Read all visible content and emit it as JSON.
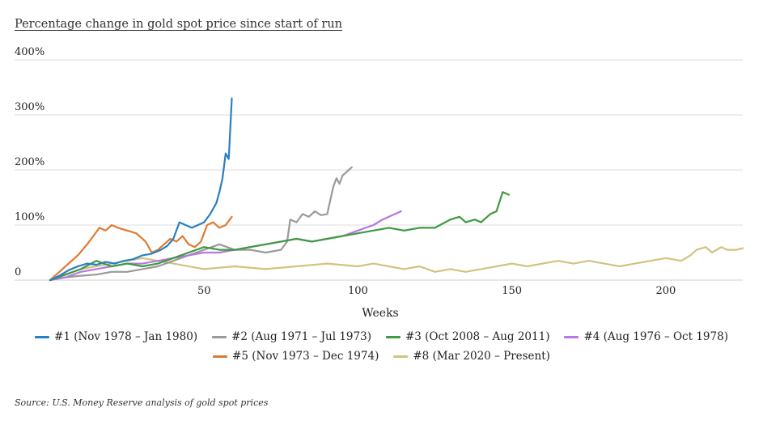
{
  "title": "Percentage change in gold spot price since start of run",
  "source": "Source: U.S. Money Reserve analysis of gold spot prices",
  "chart_data": {
    "type": "line",
    "title": "Percentage change in gold spot price since start of run",
    "xlabel": "Weeks",
    "ylabel": "",
    "xlim": [
      0,
      225
    ],
    "ylim": [
      0,
      400
    ],
    "xticks": [
      50,
      100,
      150,
      200
    ],
    "yticks": [
      0,
      100,
      200,
      300,
      400
    ],
    "ytick_labels": [
      "0",
      "100%",
      "200%",
      "300%",
      "400%"
    ],
    "grid": "horizontal",
    "legend_position": "bottom",
    "series": [
      {
        "name": "#1 (Nov 1978 – Jan 1980)",
        "color": "#2a7fc1",
        "x": [
          0,
          3,
          6,
          9,
          12,
          15,
          18,
          21,
          24,
          27,
          30,
          33,
          36,
          38,
          40,
          42,
          44,
          46,
          48,
          50,
          52,
          54,
          55,
          56,
          57,
          58,
          59
        ],
        "y": [
          0,
          8,
          18,
          25,
          30,
          28,
          33,
          30,
          35,
          38,
          45,
          48,
          55,
          62,
          75,
          105,
          100,
          95,
          100,
          105,
          120,
          140,
          160,
          185,
          230,
          220,
          330
        ]
      },
      {
        "name": "#2 (Aug 1971 – Jul 1973)",
        "color": "#9a9a9a",
        "x": [
          0,
          5,
          10,
          15,
          20,
          25,
          30,
          35,
          40,
          45,
          50,
          55,
          60,
          65,
          70,
          75,
          77,
          78,
          80,
          82,
          84,
          86,
          88,
          90,
          92,
          93,
          94,
          95,
          96,
          97,
          98
        ],
        "y": [
          0,
          5,
          8,
          10,
          15,
          15,
          20,
          25,
          35,
          45,
          55,
          65,
          55,
          55,
          50,
          55,
          70,
          110,
          105,
          120,
          115,
          125,
          118,
          120,
          170,
          185,
          175,
          190,
          195,
          200,
          205
        ]
      },
      {
        "name": "#3 (Oct 2008 – Aug 2011)",
        "color": "#3d9a40",
        "x": [
          0,
          5,
          10,
          15,
          20,
          25,
          30,
          35,
          40,
          45,
          50,
          55,
          60,
          65,
          70,
          75,
          80,
          85,
          90,
          95,
          100,
          105,
          110,
          115,
          120,
          125,
          130,
          133,
          135,
          138,
          140,
          143,
          145,
          147,
          149
        ],
        "y": [
          0,
          10,
          20,
          35,
          25,
          30,
          25,
          30,
          40,
          50,
          60,
          55,
          55,
          60,
          65,
          70,
          75,
          70,
          75,
          80,
          85,
          90,
          95,
          90,
          95,
          95,
          110,
          115,
          105,
          110,
          105,
          120,
          125,
          160,
          155
        ]
      },
      {
        "name": "#4 (Aug 1976 – Oct 1978)",
        "color": "#b777e0",
        "x": [
          0,
          5,
          10,
          15,
          20,
          25,
          30,
          35,
          40,
          45,
          50,
          55,
          60,
          65,
          70,
          75,
          80,
          85,
          90,
          95,
          100,
          105,
          108,
          110,
          112,
          114
        ],
        "y": [
          0,
          5,
          15,
          20,
          25,
          30,
          30,
          35,
          40,
          45,
          50,
          50,
          55,
          60,
          65,
          70,
          75,
          70,
          75,
          80,
          90,
          100,
          110,
          115,
          120,
          125
        ]
      },
      {
        "name": "#5 (Nov 1973 – Dec 1974)",
        "color": "#e07a30",
        "x": [
          0,
          3,
          6,
          9,
          12,
          14,
          16,
          18,
          20,
          22,
          25,
          28,
          31,
          33,
          35,
          37,
          39,
          41,
          43,
          45,
          47,
          49,
          51,
          53,
          55,
          57,
          59
        ],
        "y": [
          0,
          15,
          30,
          45,
          65,
          80,
          95,
          90,
          100,
          95,
          90,
          85,
          70,
          50,
          55,
          65,
          75,
          70,
          80,
          65,
          60,
          70,
          100,
          105,
          95,
          100,
          115
        ]
      },
      {
        "name": "#8 (Mar 2020 – Present)",
        "color": "#d2c37e",
        "x": [
          0,
          10,
          20,
          30,
          40,
          50,
          60,
          70,
          80,
          90,
          100,
          105,
          110,
          115,
          120,
          125,
          130,
          135,
          140,
          145,
          150,
          155,
          160,
          165,
          170,
          175,
          180,
          185,
          190,
          195,
          200,
          205,
          208,
          210,
          213,
          215,
          218,
          220,
          223,
          225
        ],
        "y": [
          0,
          20,
          30,
          40,
          30,
          20,
          25,
          20,
          25,
          30,
          25,
          30,
          25,
          20,
          25,
          15,
          20,
          15,
          20,
          25,
          30,
          25,
          30,
          35,
          30,
          35,
          30,
          25,
          30,
          35,
          40,
          35,
          45,
          55,
          60,
          50,
          60,
          55,
          55,
          58
        ]
      }
    ]
  }
}
